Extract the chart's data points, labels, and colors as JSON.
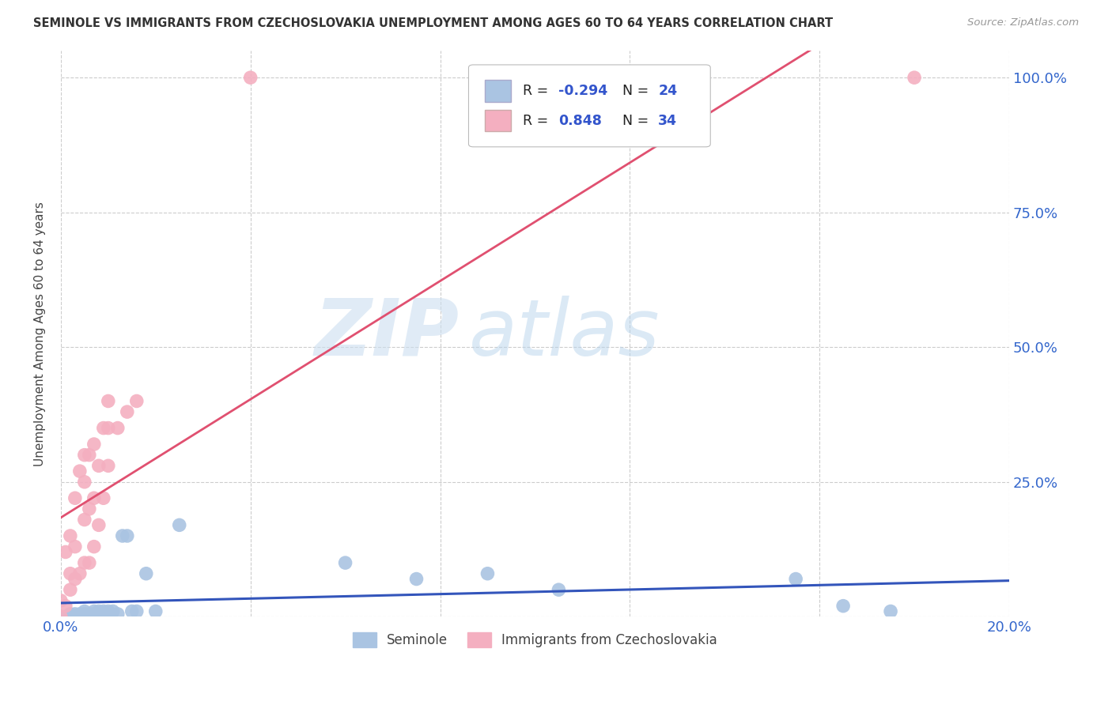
{
  "title": "SEMINOLE VS IMMIGRANTS FROM CZECHOSLOVAKIA UNEMPLOYMENT AMONG AGES 60 TO 64 YEARS CORRELATION CHART",
  "source": "Source: ZipAtlas.com",
  "ylabel": "Unemployment Among Ages 60 to 64 years",
  "xlim": [
    0.0,
    0.2
  ],
  "ylim": [
    0.0,
    1.05
  ],
  "xticks": [
    0.0,
    0.04,
    0.08,
    0.12,
    0.16,
    0.2
  ],
  "xtick_labels": [
    "0.0%",
    "",
    "",
    "",
    "",
    "20.0%"
  ],
  "yticks_right": [
    0.0,
    0.25,
    0.5,
    0.75,
    1.0
  ],
  "ytick_labels_right": [
    "",
    "25.0%",
    "50.0%",
    "75.0%",
    "100.0%"
  ],
  "seminole_color": "#aac4e2",
  "czech_color": "#f4afc0",
  "seminole_line_color": "#3355bb",
  "czech_line_color": "#e05070",
  "legend_label_1": "Seminole",
  "legend_label_2": "Immigrants from Czechoslovakia",
  "watermark_zip": "ZIP",
  "watermark_atlas": "atlas",
  "seminole_x": [
    0.0,
    0.001,
    0.002,
    0.003,
    0.003,
    0.004,
    0.004,
    0.005,
    0.005,
    0.006,
    0.006,
    0.007,
    0.007,
    0.008,
    0.008,
    0.009,
    0.01,
    0.01,
    0.011,
    0.012,
    0.013,
    0.014,
    0.015,
    0.016,
    0.018,
    0.02,
    0.025,
    0.06,
    0.075,
    0.09,
    0.105,
    0.155,
    0.165,
    0.175
  ],
  "seminole_y": [
    0.0,
    0.0,
    0.005,
    0.0,
    0.005,
    0.0,
    0.005,
    0.005,
    0.01,
    0.0,
    0.005,
    0.01,
    0.005,
    0.01,
    0.005,
    0.01,
    0.005,
    0.01,
    0.01,
    0.005,
    0.15,
    0.15,
    0.01,
    0.01,
    0.08,
    0.01,
    0.17,
    0.1,
    0.07,
    0.08,
    0.05,
    0.07,
    0.02,
    0.01
  ],
  "czech_x": [
    0.0,
    0.0,
    0.001,
    0.001,
    0.002,
    0.002,
    0.002,
    0.003,
    0.003,
    0.003,
    0.004,
    0.004,
    0.005,
    0.005,
    0.005,
    0.005,
    0.006,
    0.006,
    0.006,
    0.007,
    0.007,
    0.007,
    0.008,
    0.008,
    0.009,
    0.009,
    0.01,
    0.01,
    0.01,
    0.012,
    0.014,
    0.016,
    0.04,
    0.18
  ],
  "czech_y": [
    0.0,
    0.03,
    0.02,
    0.12,
    0.05,
    0.08,
    0.15,
    0.07,
    0.13,
    0.22,
    0.08,
    0.27,
    0.1,
    0.18,
    0.25,
    0.3,
    0.1,
    0.2,
    0.3,
    0.13,
    0.22,
    0.32,
    0.17,
    0.28,
    0.22,
    0.35,
    0.28,
    0.35,
    0.4,
    0.35,
    0.38,
    0.4,
    1.0,
    1.0
  ]
}
